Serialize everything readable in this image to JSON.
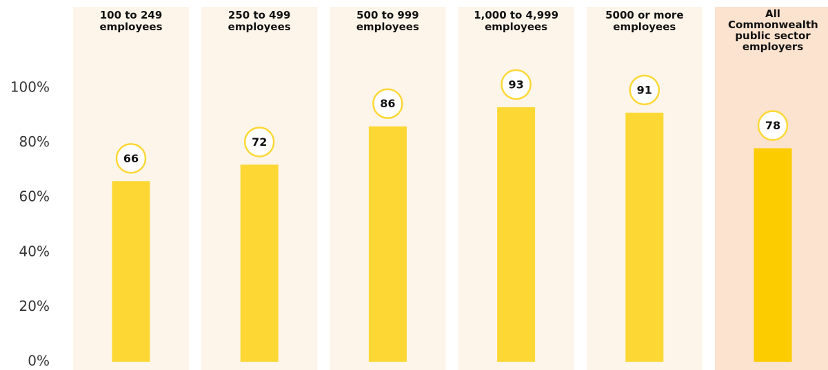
{
  "chart_data": {
    "type": "bar",
    "categories": [
      "100 to 249 employees",
      "250 to 499 employees",
      "500 to 999 employees",
      "1,000 to 4,999 employees",
      "5000 or more employees",
      "All Commonwealth public sector employers"
    ],
    "values": [
      66,
      72,
      86,
      93,
      91,
      78
    ],
    "colors": [
      "#fdd835",
      "#fdd835",
      "#fdd835",
      "#fdd835",
      "#fdd835",
      "#fccc00"
    ],
    "panel_colors": [
      "#fdf5ea",
      "#fdf5ea",
      "#fdf5ea",
      "#fdf5ea",
      "#fdf5ea",
      "#fbe3cf"
    ],
    "ylim": [
      0,
      100
    ],
    "yticks": [
      {
        "value": 0,
        "label": "0%"
      },
      {
        "value": 20,
        "label": "20%"
      },
      {
        "value": 40,
        "label": "40%"
      },
      {
        "value": 60,
        "label": "60%"
      },
      {
        "value": 80,
        "label": "80%"
      },
      {
        "value": 100,
        "label": "100%"
      }
    ]
  }
}
